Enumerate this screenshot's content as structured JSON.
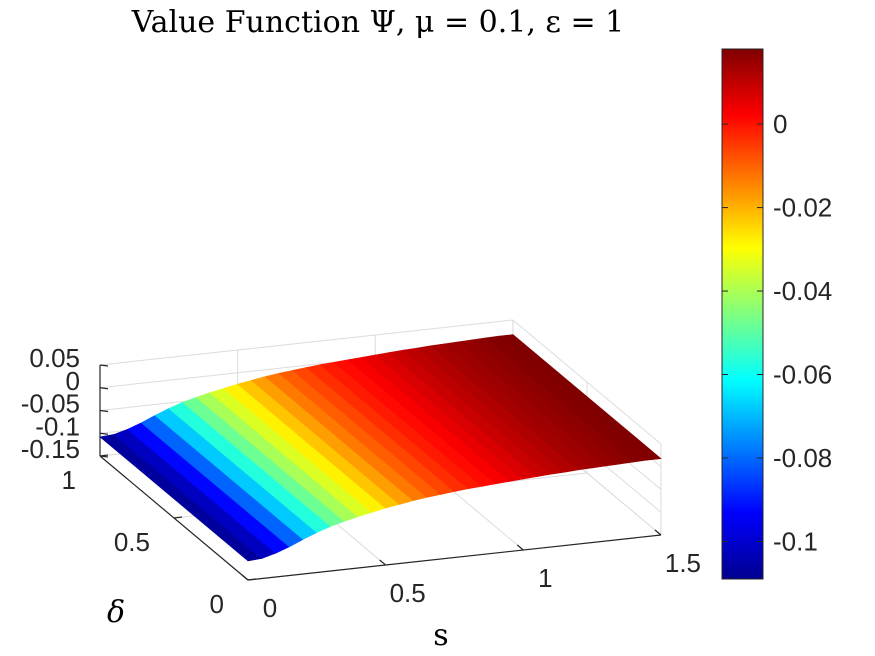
{
  "chart_data": {
    "type": "surface",
    "title": "Value Function Ψ, μ = 0.1, ε = 1",
    "xlabel": "s",
    "ylabel": "δ",
    "zlabel": "",
    "xlim": [
      0,
      1.5
    ],
    "ylim": [
      0,
      1
    ],
    "zlim": [
      -0.15,
      0.05
    ],
    "x_ticks": [
      "0",
      "0.5",
      "1",
      "1.5"
    ],
    "y_ticks": [
      "0",
      "0.5",
      "1"
    ],
    "z_ticks": [
      "-0.15",
      "-0.1",
      "-0.05",
      "0",
      "0.05"
    ],
    "grid": true,
    "colormap": "jet",
    "colorbar": {
      "location": "right",
      "range": [
        -0.109,
        0.018
      ],
      "ticks": [
        "-0.1",
        "-0.08",
        "-0.06",
        "-0.04",
        "-0.02",
        "0"
      ]
    },
    "profile_note": "Surface is constant along δ; z varies with s only",
    "s": [
      0.0,
      0.05,
      0.1,
      0.15,
      0.2,
      0.25,
      0.3,
      0.35,
      0.4,
      0.45,
      0.5,
      0.55,
      0.6,
      0.65,
      0.7,
      0.75,
      0.8,
      0.85,
      0.9,
      0.95,
      1.0,
      1.05,
      1.1,
      1.15,
      1.2,
      1.25,
      1.3,
      1.35,
      1.4,
      1.45,
      1.5
    ],
    "z": [
      -0.108,
      -0.106,
      -0.098,
      -0.087,
      -0.074,
      -0.062,
      -0.052,
      -0.044,
      -0.037,
      -0.031,
      -0.025,
      -0.02,
      -0.015,
      -0.011,
      -0.008,
      -0.005,
      -0.002,
      0.0,
      0.002,
      0.004,
      0.006,
      0.008,
      0.01,
      0.011,
      0.013,
      0.014,
      0.015,
      0.016,
      0.017,
      0.018,
      0.018
    ],
    "delta": [
      0,
      0.1,
      0.2,
      0.3,
      0.4,
      0.5,
      0.6,
      0.7,
      0.8,
      0.9,
      1.0
    ]
  }
}
